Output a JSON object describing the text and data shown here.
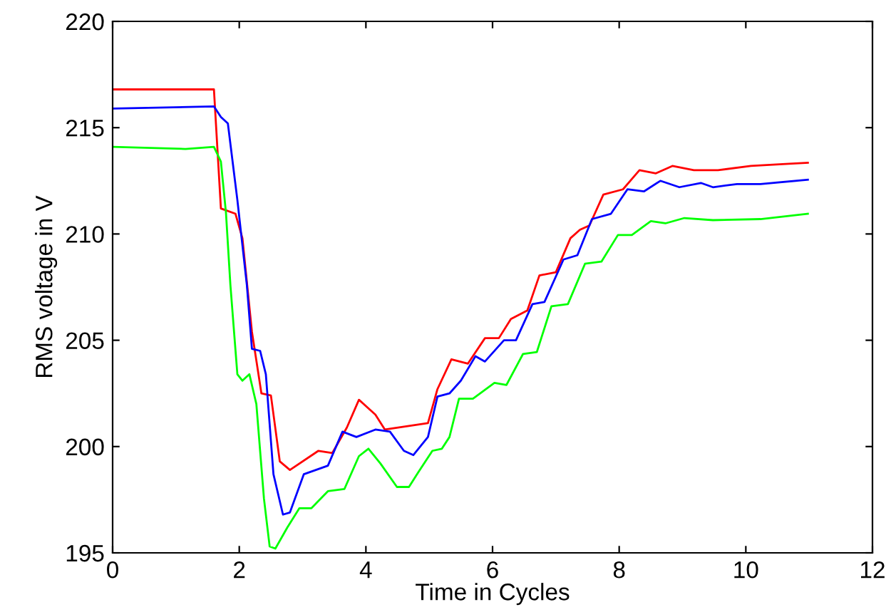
{
  "chart_data": {
    "type": "line",
    "xlabel": "Time in Cycles",
    "ylabel": "RMS voltage in V",
    "xlim": [
      0,
      12
    ],
    "ylim": [
      195,
      220
    ],
    "xticks": [
      0,
      2,
      4,
      6,
      8,
      10,
      12
    ],
    "yticks": [
      195,
      200,
      205,
      210,
      215,
      220
    ],
    "grid": false,
    "marker": "none",
    "line_style": "solid",
    "series": [
      {
        "color": "#ff0000",
        "x": [
          0,
          1.6,
          1.71,
          1.94,
          2.05,
          2.2,
          2.35,
          2.5,
          2.64,
          2.8,
          3.25,
          3.47,
          3.7,
          3.89,
          4.15,
          4.3,
          4.98,
          5.13,
          5.35,
          5.61,
          5.88,
          6.1,
          6.29,
          6.55,
          6.74,
          7.0,
          7.23,
          7.38,
          7.53,
          7.75,
          8.06,
          8.32,
          8.58,
          8.84,
          9.18,
          9.56,
          10.08,
          10.68,
          10.98
        ],
        "values": [
          216.8,
          216.8,
          211.2,
          210.95,
          209.8,
          205.4,
          202.5,
          202.4,
          199.3,
          198.9,
          199.8,
          199.7,
          200.9,
          202.2,
          201.5,
          200.8,
          201.1,
          202.7,
          204.1,
          203.9,
          205.1,
          205.1,
          206.0,
          206.4,
          208.05,
          208.2,
          209.8,
          210.2,
          210.4,
          211.85,
          212.1,
          213.0,
          212.85,
          213.2,
          213.0,
          213.0,
          213.2,
          213.3,
          213.35
        ]
      },
      {
        "color": "#0000ff",
        "x": [
          0,
          1.6,
          1.71,
          1.82,
          1.97,
          2.12,
          2.2,
          2.33,
          2.42,
          2.54,
          2.69,
          2.8,
          3.02,
          3.21,
          3.4,
          3.63,
          3.85,
          4.15,
          4.38,
          4.6,
          4.75,
          4.98,
          5.13,
          5.32,
          5.5,
          5.73,
          5.88,
          6.18,
          6.37,
          6.63,
          6.82,
          7.12,
          7.34,
          7.57,
          7.87,
          8.13,
          8.39,
          8.65,
          8.95,
          9.29,
          9.48,
          9.86,
          10.23,
          10.98
        ],
        "values": [
          215.9,
          216.0,
          215.5,
          215.2,
          211.6,
          207.6,
          204.6,
          204.5,
          203.4,
          198.7,
          196.8,
          196.9,
          198.7,
          198.9,
          199.1,
          200.7,
          200.45,
          200.8,
          200.7,
          199.8,
          199.6,
          200.45,
          202.35,
          202.5,
          203.1,
          204.25,
          204.0,
          205.0,
          205.0,
          206.7,
          206.8,
          208.8,
          209.0,
          210.7,
          210.95,
          212.1,
          212.0,
          212.5,
          212.2,
          212.4,
          212.2,
          212.35,
          212.35,
          212.55
        ]
      },
      {
        "color": "#00ff00",
        "x": [
          0,
          1.15,
          1.6,
          1.71,
          1.79,
          1.86,
          1.97,
          2.05,
          2.16,
          2.27,
          2.39,
          2.48,
          2.57,
          2.76,
          2.95,
          3.14,
          3.4,
          3.66,
          3.89,
          4.04,
          4.23,
          4.49,
          4.68,
          4.83,
          5.05,
          5.2,
          5.32,
          5.47,
          5.69,
          6.03,
          6.22,
          6.48,
          6.7,
          6.93,
          7.19,
          7.46,
          7.72,
          7.98,
          8.2,
          8.5,
          8.73,
          9.03,
          9.48,
          10.23,
          10.98
        ],
        "values": [
          214.1,
          214.0,
          214.1,
          213.4,
          211.0,
          207.6,
          203.4,
          203.1,
          203.4,
          202.0,
          197.55,
          195.3,
          195.2,
          196.2,
          197.1,
          197.1,
          197.9,
          198.0,
          199.55,
          199.9,
          199.2,
          198.1,
          198.1,
          198.8,
          199.8,
          199.9,
          200.45,
          202.25,
          202.25,
          203.0,
          202.9,
          204.35,
          204.45,
          206.6,
          206.7,
          208.6,
          208.7,
          209.95,
          209.95,
          210.6,
          210.5,
          210.75,
          210.65,
          210.7,
          210.95
        ]
      }
    ]
  }
}
